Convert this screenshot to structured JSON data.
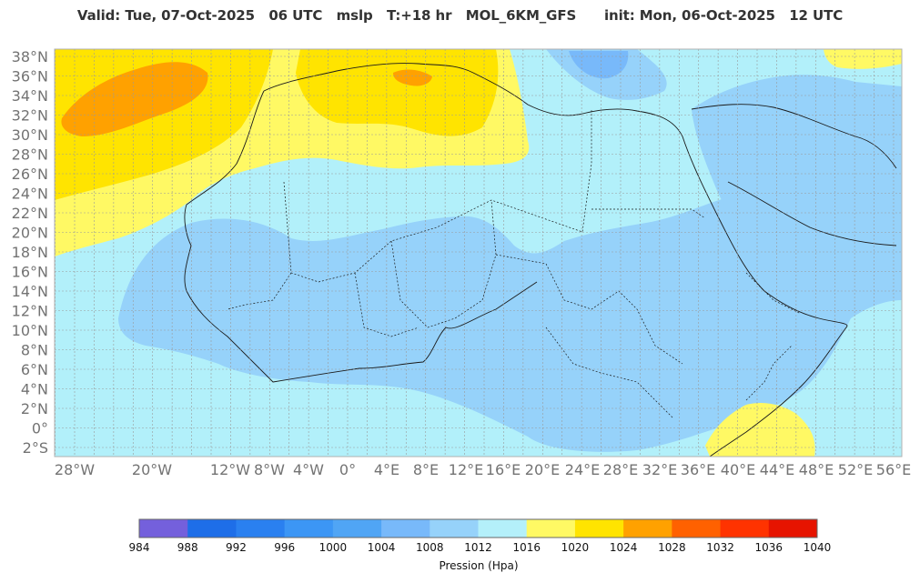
{
  "title": "Valid: Tue, 07-Oct-2025   06 UTC   mslp   T:+18 hr   MOL_6KM_GFS      init: Mon, 06-Oct-2025   12 UTC",
  "map": {
    "lat_labels": [
      "38°N",
      "36°N",
      "34°N",
      "32°N",
      "30°N",
      "28°N",
      "26°N",
      "24°N",
      "22°N",
      "20°N",
      "18°N",
      "16°N",
      "14°N",
      "12°N",
      "10°N",
      "8°N",
      "6°N",
      "4°N",
      "2°N",
      "0°",
      "2°S"
    ],
    "lon_labels": [
      "28°W",
      "20°W",
      "12°W",
      "8°W",
      "4°W",
      "0°",
      "4°E",
      "8°E",
      "12°E",
      "16°E",
      "20°E",
      "24°E",
      "28°E",
      "32°E",
      "36°E",
      "40°E",
      "44°E",
      "48°E",
      "52°E",
      "56°E"
    ],
    "base_color": "#b2f0fa"
  },
  "colorbar": {
    "colors": [
      "#7460dc",
      "#1e6ee8",
      "#2a80f0",
      "#3c96f5",
      "#50a5f5",
      "#78b9fa",
      "#96d2fa",
      "#b4f0fa",
      "#fff964",
      "#ffe400",
      "#ffa100",
      "#ff6100",
      "#ff3300",
      "#e61400"
    ],
    "ticks": [
      "984",
      "988",
      "992",
      "996",
      "1000",
      "1004",
      "1008",
      "1012",
      "1016",
      "1020",
      "1024",
      "1028",
      "1032",
      "1036",
      "1040"
    ],
    "label": "Pression (Hpa)"
  }
}
